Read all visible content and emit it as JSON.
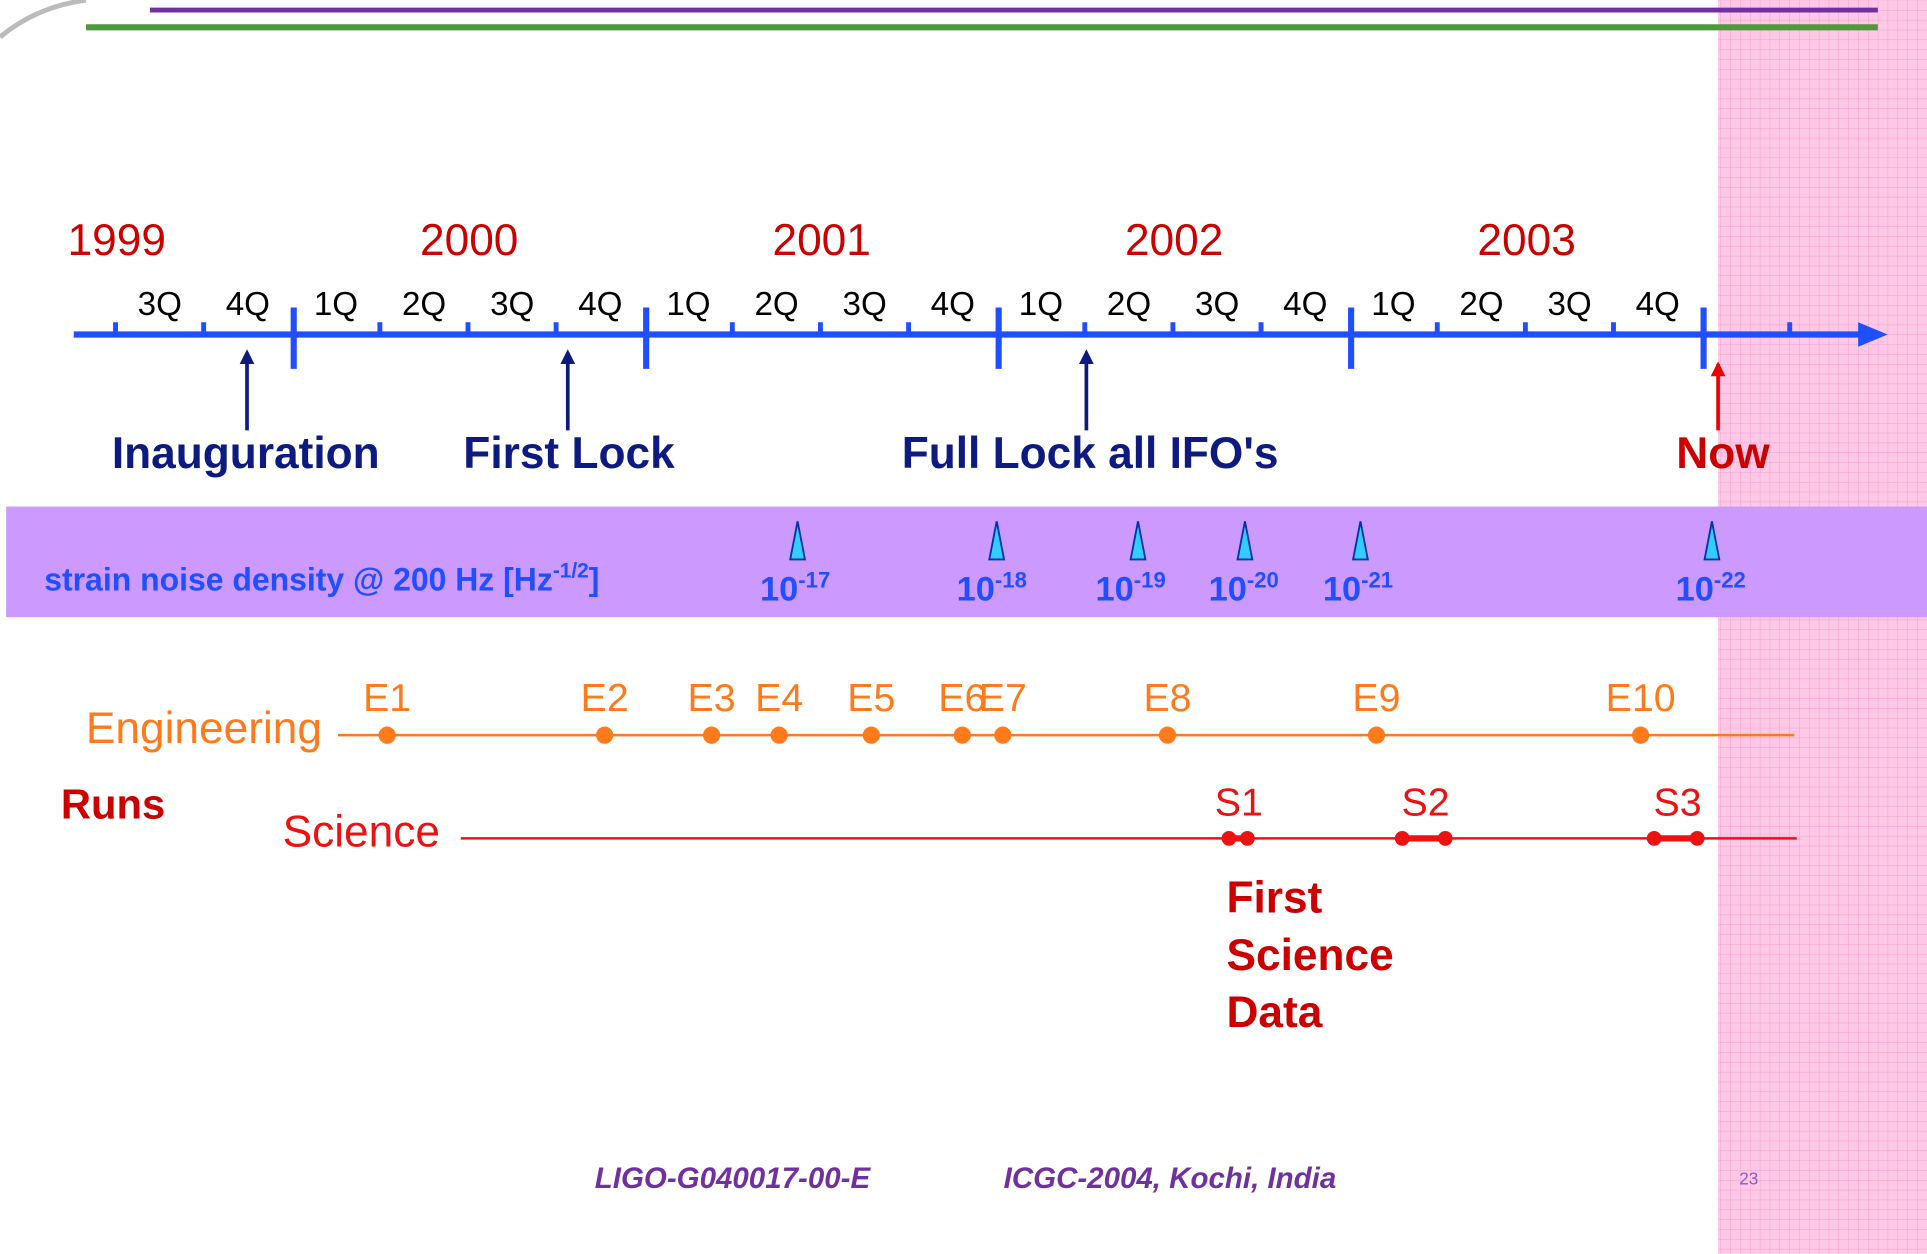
{
  "timeline": {
    "years": [
      "1999",
      "2000",
      "2001",
      "2002",
      "2003"
    ],
    "quarters": [
      "3Q",
      "4Q",
      "1Q",
      "2Q",
      "3Q",
      "4Q",
      "1Q",
      "2Q",
      "3Q",
      "4Q",
      "1Q",
      "2Q",
      "3Q",
      "4Q",
      "1Q",
      "2Q",
      "3Q",
      "4Q"
    ],
    "milestones": [
      "Inauguration",
      "First Lock",
      "Full Lock all IFO's",
      "Now"
    ]
  },
  "strain": {
    "label": "strain noise density @ 200 Hz [Hz",
    "label_exponent": "-1/2",
    "label_end": "]",
    "markers": [
      {
        "base": "10",
        "exponent": "-17"
      },
      {
        "base": "10",
        "exponent": "-18"
      },
      {
        "base": "10",
        "exponent": "-19"
      },
      {
        "base": "10",
        "exponent": "-20"
      },
      {
        "base": "10",
        "exponent": "-21"
      },
      {
        "base": "10",
        "exponent": "-22"
      }
    ]
  },
  "runs": {
    "title": "Runs",
    "engineering": {
      "label": "Engineering",
      "runs": [
        "E1",
        "E2",
        "E3",
        "E4",
        "E5",
        "E6",
        "E7",
        "E8",
        "E9",
        "E10"
      ]
    },
    "science": {
      "label": "Science",
      "runs": [
        "S1",
        "S2",
        "S3"
      ]
    },
    "note": [
      "First",
      "Science",
      "Data"
    ]
  },
  "footer": {
    "document_id": "LIGO-G040017-00-E",
    "conference": "ICGC-2004, Kochi, India",
    "page": "23"
  }
}
